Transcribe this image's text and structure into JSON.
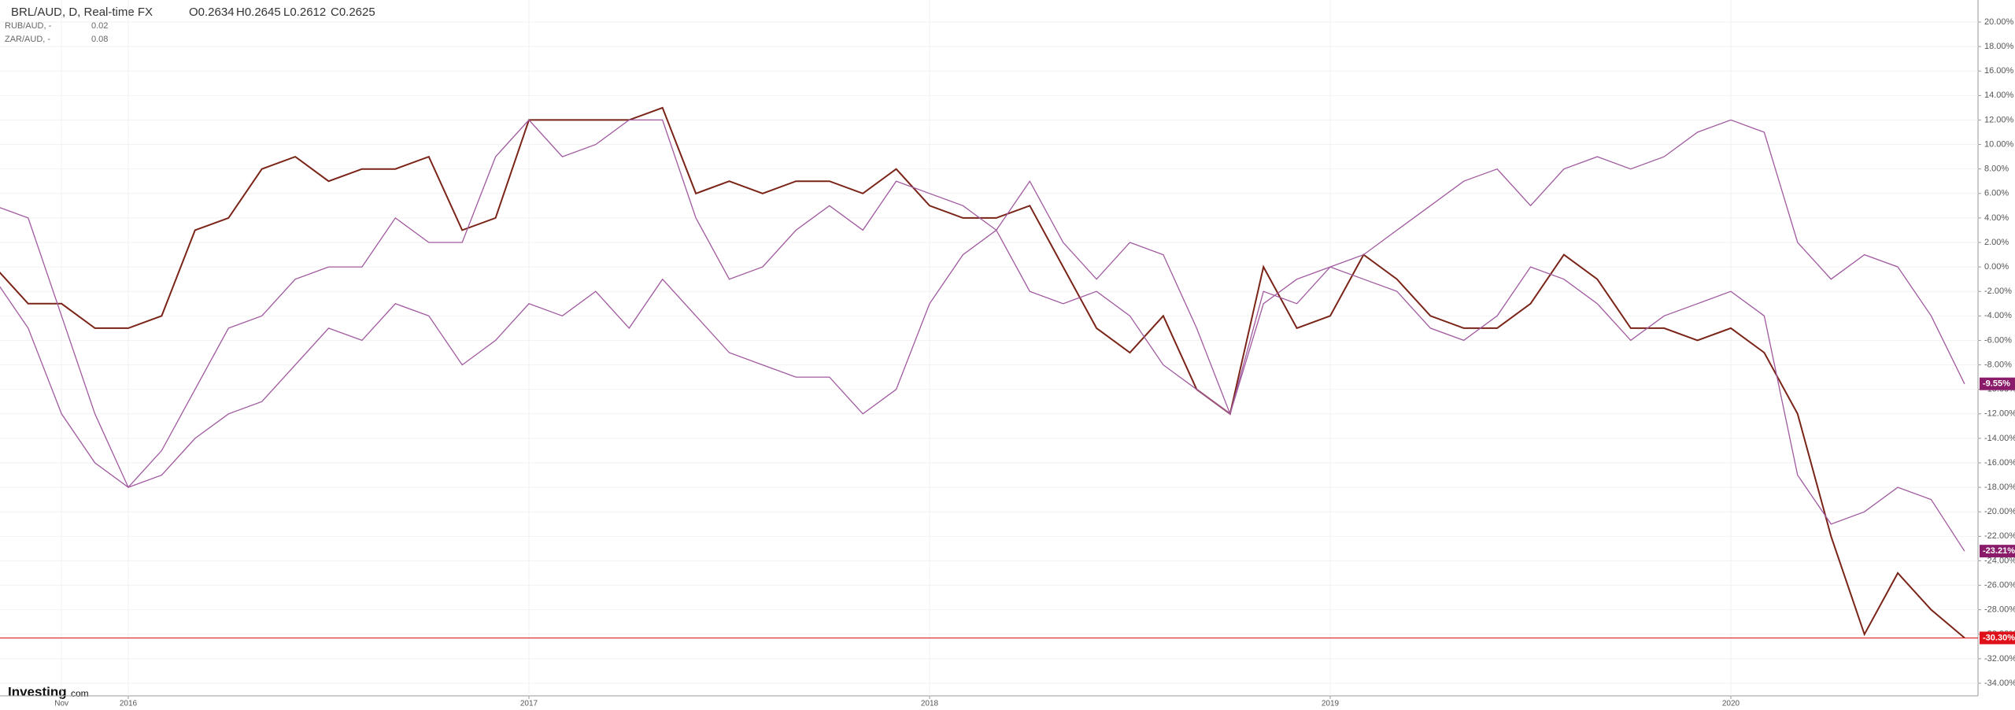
{
  "chart_data": {
    "type": "line",
    "logo": "Investing",
    "logo_suffix": "com",
    "ohlc": [
      "O0.2634",
      "H0.2645",
      "L0.2612",
      "C0.2625"
    ],
    "x": [
      "2015-09",
      "2015-10",
      "2015-11",
      "2015-12",
      "2016-01",
      "2016-02",
      "2016-03",
      "2016-04",
      "2016-05",
      "2016-06",
      "2016-07",
      "2016-08",
      "2016-09",
      "2016-10",
      "2016-11",
      "2016-12",
      "2017-01",
      "2017-02",
      "2017-03",
      "2017-04",
      "2017-05",
      "2017-06",
      "2017-07",
      "2017-08",
      "2017-09",
      "2017-10",
      "2017-11",
      "2017-12",
      "2018-01",
      "2018-02",
      "2018-03",
      "2018-04",
      "2018-05",
      "2018-06",
      "2018-07",
      "2018-08",
      "2018-09",
      "2018-10",
      "2018-11",
      "2018-12",
      "2019-01",
      "2019-02",
      "2019-03",
      "2019-04",
      "2019-05",
      "2019-06",
      "2019-07",
      "2019-08",
      "2019-09",
      "2019-10",
      "2019-11",
      "2019-12",
      "2020-01",
      "2020-02",
      "2020-03",
      "2020-04",
      "2020-05",
      "2020-06",
      "2020-07",
      "2020-08"
    ],
    "xticks": [
      {
        "value": "2015-11",
        "label": "Nov"
      },
      {
        "value": "2016-01",
        "label": "2016"
      },
      {
        "value": "2017-01",
        "label": "2017"
      },
      {
        "value": "2018-01",
        "label": "2018"
      },
      {
        "value": "2019-01",
        "label": "2019"
      },
      {
        "value": "2020-01",
        "label": "2020"
      }
    ],
    "series": [
      {
        "name": "BRL/AUD, D, Real-time FX",
        "color": "#7a2418",
        "label_color": "#e0101a",
        "values": [
          0,
          -3,
          -3,
          -5,
          -5,
          -4,
          3,
          4,
          8,
          9,
          7,
          8,
          8,
          9,
          3,
          4,
          12,
          12,
          12,
          12,
          13,
          6,
          7,
          6,
          7,
          7,
          6,
          8,
          5,
          4,
          4,
          5,
          0,
          -5,
          -7,
          -4,
          -10,
          -12,
          0,
          -5,
          -4,
          1,
          -1,
          -4,
          -5,
          -5,
          -3,
          1,
          -1,
          -5,
          -5,
          -6,
          -5,
          -7,
          -12,
          -22,
          -30,
          -25,
          -28,
          -30.3
        ],
        "value_labels": [
          null,
          null,
          null,
          null,
          null,
          null,
          null,
          null,
          null,
          null,
          null,
          null,
          null,
          null,
          null,
          null,
          null,
          null,
          null,
          null,
          null,
          null,
          null,
          null,
          null,
          null,
          null,
          null,
          null,
          null,
          null,
          null,
          null,
          null,
          null,
          null,
          null,
          null,
          null,
          null,
          null,
          null,
          null,
          null,
          null,
          null,
          null,
          null,
          null,
          null,
          null,
          null,
          null,
          null,
          null,
          null,
          null,
          null,
          null,
          "-30.30%"
        ]
      },
      {
        "name": "RUB/AUD, -",
        "legend_value": "0.02",
        "color": "#a0599f",
        "label_color": "#8a1a6a",
        "values": [
          5,
          4,
          -4,
          -12,
          -18,
          -15,
          -10,
          -5,
          -4,
          -1,
          0,
          0,
          4,
          2,
          2,
          9,
          12,
          9,
          10,
          12,
          12,
          4,
          -1,
          0,
          3,
          5,
          3,
          7,
          6,
          5,
          3,
          -2,
          -3,
          -2,
          -4,
          -8,
          -10,
          -12,
          -2,
          -3,
          0,
          -1,
          -2,
          -5,
          -6,
          -4,
          0,
          -1,
          -3,
          -6,
          -4,
          -3,
          -2,
          -4,
          -17,
          -21,
          -20,
          -18,
          -19,
          -23.21
        ],
        "value_labels": [
          null,
          null,
          null,
          null,
          null,
          null,
          null,
          null,
          null,
          null,
          null,
          null,
          null,
          null,
          null,
          null,
          null,
          null,
          null,
          null,
          null,
          null,
          null,
          null,
          null,
          null,
          null,
          null,
          null,
          null,
          null,
          null,
          null,
          null,
          null,
          null,
          null,
          null,
          null,
          null,
          null,
          null,
          null,
          null,
          null,
          null,
          null,
          null,
          null,
          null,
          null,
          null,
          null,
          null,
          null,
          null,
          null,
          null,
          null,
          "-23.21%"
        ]
      },
      {
        "name": "ZAR/AUD, -",
        "legend_value": "0.08",
        "color": "#a0599f",
        "label_color": "#8a1a6a",
        "values": [
          -1,
          -5,
          -12,
          -16,
          -18,
          -17,
          -14,
          -12,
          -11,
          -8,
          -5,
          -6,
          -3,
          -4,
          -8,
          -6,
          -3,
          -4,
          -2,
          -5,
          -1,
          -4,
          -7,
          -8,
          -9,
          -9,
          -12,
          -10,
          -3,
          1,
          3,
          7,
          2,
          -1,
          2,
          1,
          -5,
          -12,
          -3,
          -1,
          0,
          1,
          3,
          5,
          7,
          8,
          5,
          8,
          9,
          8,
          9,
          11,
          12,
          11,
          2,
          -1,
          1,
          0,
          -4,
          -9.55
        ],
        "value_labels": [
          null,
          null,
          null,
          null,
          null,
          null,
          null,
          null,
          null,
          null,
          null,
          null,
          null,
          null,
          null,
          null,
          null,
          null,
          null,
          null,
          null,
          null,
          null,
          null,
          null,
          null,
          null,
          null,
          null,
          null,
          null,
          null,
          null,
          null,
          null,
          null,
          null,
          null,
          null,
          null,
          null,
          null,
          null,
          null,
          null,
          null,
          null,
          null,
          null,
          null,
          null,
          null,
          null,
          null,
          null,
          null,
          null,
          null,
          null,
          "-9.55%"
        ]
      }
    ],
    "ylim": [
      -35,
      21
    ],
    "yticks": [
      {
        "value": 20,
        "label": "20.00%"
      },
      {
        "value": 18,
        "label": "18.00%"
      },
      {
        "value": 16,
        "label": "16.00%"
      },
      {
        "value": 14,
        "label": "14.00%"
      },
      {
        "value": 12,
        "label": "12.00%"
      },
      {
        "value": 10,
        "label": "10.00%"
      },
      {
        "value": 8,
        "label": "8.00%"
      },
      {
        "value": 6,
        "label": "6.00%"
      },
      {
        "value": 4,
        "label": "4.00%"
      },
      {
        "value": 2,
        "label": "2.00%"
      },
      {
        "value": 0,
        "label": "0.00%"
      },
      {
        "value": -2,
        "label": "-2.00%"
      },
      {
        "value": -4,
        "label": "-4.00%"
      },
      {
        "value": -6,
        "label": "-6.00%"
      },
      {
        "value": -8,
        "label": "-8.00%"
      },
      {
        "value": -10,
        "label": "-10.00%"
      },
      {
        "value": -12,
        "label": "-12.00%"
      },
      {
        "value": -14,
        "label": "-14.00%"
      },
      {
        "value": -16,
        "label": "-16.00%"
      },
      {
        "value": -18,
        "label": "-18.00%"
      },
      {
        "value": -20,
        "label": "-20.00%"
      },
      {
        "value": -22,
        "label": "-22.00%"
      },
      {
        "value": -24,
        "label": "-24.00%"
      },
      {
        "value": -26,
        "label": "-26.00%"
      },
      {
        "value": -28,
        "label": "-28.00%"
      },
      {
        "value": -30,
        "label": "-30.00%"
      },
      {
        "value": -32,
        "label": "-32.00%"
      },
      {
        "value": -34,
        "label": "-34.00%"
      }
    ],
    "grid": true
  }
}
